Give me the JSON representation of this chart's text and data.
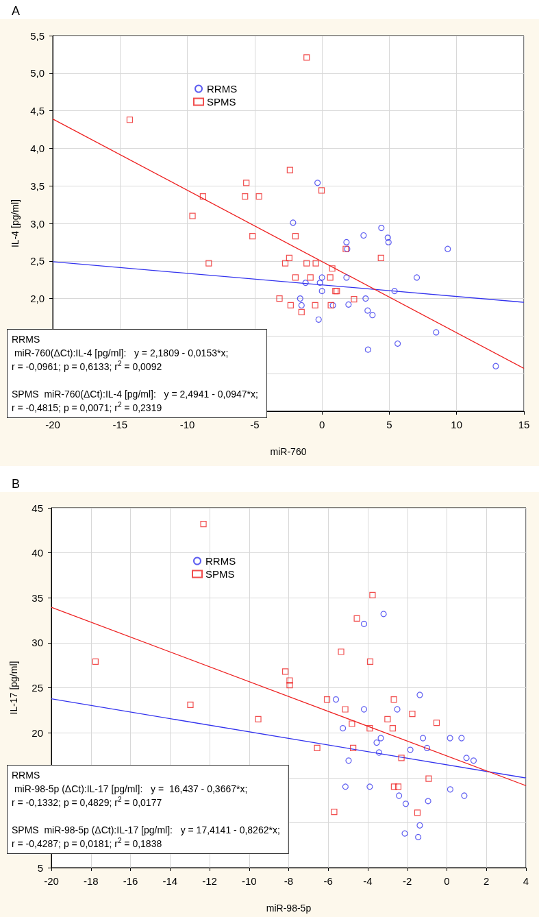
{
  "chart_data": [
    {
      "type": "scatter",
      "title": "A",
      "xlabel": "miR-760",
      "ylabel": "IL-4 [pg/ml]",
      "xlim": [
        -20,
        15
      ],
      "xticks": [
        -20,
        -15,
        -10,
        -5,
        0,
        5,
        10,
        15
      ],
      "ylim": [
        0.5,
        5.5
      ],
      "yticks": [
        {
          "value": 0.5,
          "label": null
        },
        {
          "value": 1.0,
          "label": null
        },
        {
          "value": 1.5,
          "label": null
        },
        {
          "value": 2.0,
          "label": "2,0"
        },
        {
          "value": 2.5,
          "label": "2,5"
        },
        {
          "value": 3.0,
          "label": "3,0"
        },
        {
          "value": 3.5,
          "label": "3,5"
        },
        {
          "value": 4.0,
          "label": "4,0"
        },
        {
          "value": 4.5,
          "label": "4,5"
        },
        {
          "value": 5.0,
          "label": "5,0"
        },
        {
          "value": 5.5,
          "label": "5,5"
        }
      ],
      "grid": true,
      "legend": "top left",
      "annotations": [
        "RRMS\n miR-760(ΔCt):IL-4 [pg/ml]:   y = 2,1809 - 0,0153*x;\nr = -0,0961; p = 0,6133; r$^{2}$ = 0,0092",
        "SPMS  miR-760(ΔCt):IL-4 [pg/ml]:   y = 2,4941 - 0,0947*x;\nr = -0,4815; p = 0,0071; r$^{2}$ = 0,2319"
      ],
      "series": [
        {
          "name": "RRMS",
          "marker": "circle",
          "color": "#3333ee",
          "x": [
            -0.33,
            -2.15,
            4.41,
            3.09,
            4.89,
            4.94,
            1.82,
            1.87,
            9.34,
            7.04,
            0,
            1.82,
            -0.15,
            -1.22,
            0,
            5.39,
            -1.62,
            -1.52,
            0.81,
            1.97,
            3.24,
            3.39,
            3.75,
            -0.25,
            8.48,
            5.62,
            3.42,
            12.91
          ],
          "values": [
            3.54,
            3.01,
            2.94,
            2.84,
            2.81,
            2.75,
            2.75,
            2.66,
            2.66,
            2.28,
            2.28,
            2.28,
            2.21,
            2.21,
            2.1,
            2.1,
            2.0,
            1.91,
            1.91,
            1.92,
            2.0,
            1.84,
            1.78,
            1.72,
            1.55,
            1.4,
            1.32,
            1.1
          ]
        },
        {
          "name": "SPMS",
          "marker": "square",
          "color": "#ee2222",
          "x": [
            -1.14,
            -14.28,
            -2.38,
            -5.62,
            -0.03,
            -8.84,
            -5.72,
            -4.68,
            -9.62,
            -5.16,
            -1.97,
            1.77,
            -8.41,
            -2.43,
            -2.73,
            -1.14,
            -0.46,
            0.76,
            -1.97,
            -0.86,
            0.61,
            1.0,
            1.1,
            -3.16,
            2.38,
            -2.33,
            -0.51,
            0.66,
            -1.52,
            4.38
          ],
          "values": [
            5.21,
            4.38,
            3.71,
            3.54,
            3.44,
            3.36,
            3.36,
            3.36,
            3.1,
            2.83,
            2.83,
            2.66,
            2.47,
            2.54,
            2.47,
            2.47,
            2.47,
            2.4,
            2.28,
            2.28,
            2.28,
            2.1,
            2.1,
            2.0,
            1.99,
            1.91,
            1.91,
            1.91,
            1.82,
            2.54
          ]
        },
        {
          "type": "line",
          "color": "#3333ee",
          "x": [
            -20,
            15
          ],
          "values": [
            2.49,
            1.95
          ]
        },
        {
          "type": "line",
          "color": "#ee2222",
          "x": [
            -20,
            15
          ],
          "values": [
            4.39,
            1.07
          ]
        }
      ]
    },
    {
      "type": "scatter",
      "title": "B",
      "xlabel": "miR-98-5p",
      "ylabel": "IL-17 [pg/ml]",
      "xlim": [
        -20,
        4
      ],
      "xticks": [
        -20,
        -18,
        -16,
        -14,
        -12,
        -10,
        -8,
        -6,
        -4,
        -2,
        0,
        2,
        4
      ],
      "ylim": [
        5,
        45
      ],
      "yticks": [
        5,
        {
          "value": 10,
          "label": null
        },
        {
          "value": 15,
          "label": null
        },
        20,
        25,
        30,
        35,
        40,
        45
      ],
      "grid": true,
      "legend": "top left",
      "annotations": [
        "RRMS\n miR-98-5p (ΔCt):IL-17 [pg/ml]:   y =  16,437 - 0,3667*x;\nr = -0,1332; p = 0,4829; r$^{2}$ = 0,0177",
        "SPMS  miR-98-5p (ΔCt):IL-17 [pg/ml]:   y = 17,4141 - 0,8262*x;\nr = -0,4287; p = 0,0181; r$^{2}$ = 0,1838"
      ],
      "series": [
        {
          "name": "RRMS",
          "marker": "circle",
          "color": "#3333ee",
          "x": [
            -4.19,
            -3.2,
            -1.37,
            -5.61,
            -4.19,
            -2.51,
            -5.26,
            -1.21,
            -3.34,
            0.16,
            0.74,
            -3.55,
            -1.85,
            -1.0,
            -3.43,
            0.99,
            1.35,
            -4.97,
            -5.13,
            -3.9,
            0.17,
            -2.42,
            0.88,
            -2.08,
            -0.95,
            -1.37,
            -2.13,
            -1.45
          ],
          "values": [
            32.1,
            33.2,
            24.2,
            23.7,
            22.6,
            22.6,
            20.5,
            19.4,
            19.4,
            19.4,
            19.4,
            18.9,
            18.1,
            18.3,
            17.8,
            17.2,
            16.9,
            16.9,
            14.0,
            14.0,
            13.7,
            13.0,
            13.0,
            12.1,
            12.4,
            9.7,
            8.8,
            8.4
          ]
        },
        {
          "name": "SPMS",
          "marker": "square",
          "color": "#ee2222",
          "x": [
            -12.31,
            -3.76,
            -4.55,
            -5.35,
            -17.77,
            -3.88,
            -8.17,
            -7.95,
            -7.95,
            -12.97,
            -6.06,
            -2.68,
            -5.14,
            -1.75,
            -9.54,
            -3.0,
            -4.8,
            -0.52,
            -3.9,
            -2.74,
            -6.56,
            -4.74,
            -2.3,
            -0.92,
            -2.67,
            -2.46,
            -5.7,
            -1.49
          ],
          "values": [
            43.2,
            35.3,
            32.7,
            29.0,
            27.9,
            27.9,
            26.8,
            25.8,
            25.3,
            23.1,
            23.7,
            23.7,
            22.6,
            22.1,
            21.5,
            21.5,
            21.0,
            21.1,
            20.5,
            20.5,
            18.3,
            18.3,
            17.2,
            14.9,
            14.0,
            14.0,
            11.2,
            11.1
          ]
        },
        {
          "type": "line",
          "color": "#3333ee",
          "x": [
            -20,
            4
          ],
          "values": [
            23.77,
            14.97
          ]
        },
        {
          "type": "line",
          "color": "#ee2222",
          "x": [
            -20,
            4
          ],
          "values": [
            33.94,
            14.11
          ]
        }
      ]
    }
  ]
}
